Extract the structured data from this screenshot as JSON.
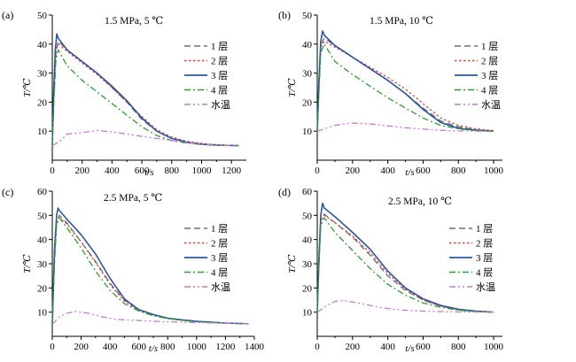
{
  "figure": {
    "x_unit_label": "t/s",
    "y_unit_label": "T/℃"
  },
  "legend_labels": [
    "1 层",
    "2 层",
    "3 层",
    "4 层",
    "水温"
  ],
  "series_styles": [
    {
      "color": "#707070",
      "dash": "7,4"
    },
    {
      "color": "#e0433a",
      "dash": "2.5,2.5"
    },
    {
      "color": "#2b55a8",
      "dash": ""
    },
    {
      "color": "#2ca02c",
      "dash": "7,3,2,3"
    },
    {
      "color": "#c77ad1",
      "dash": "7,3,2,3,2,3"
    }
  ],
  "chart_data": [
    {
      "type": "line",
      "panel_label": "(a)",
      "condition": "1.5 MPa, 5 ℃",
      "xlabel": "t/s",
      "ylabel": "T/℃",
      "xlim": [
        0,
        1300
      ],
      "ylim": [
        0,
        50
      ],
      "xticks": [
        0,
        200,
        400,
        600,
        800,
        1000,
        1200
      ],
      "yticks": [
        10,
        20,
        30,
        40,
        50
      ],
      "series": [
        {
          "name": "1 层",
          "x": [
            0,
            10,
            25,
            40,
            100,
            200,
            300,
            400,
            500,
            600,
            700,
            800,
            900,
            1000,
            1100,
            1250
          ],
          "y": [
            5,
            20,
            37,
            41,
            38,
            34,
            30,
            25,
            20,
            14,
            10,
            7.5,
            6.3,
            5.6,
            5.2,
            5
          ]
        },
        {
          "name": "2 层",
          "x": [
            0,
            10,
            25,
            40,
            100,
            200,
            300,
            400,
            500,
            600,
            700,
            800,
            900,
            1000,
            1100,
            1250
          ],
          "y": [
            5,
            22,
            38,
            40,
            37.5,
            33.5,
            29.5,
            25,
            20,
            15,
            10.5,
            8,
            6.5,
            5.8,
            5.3,
            5
          ]
        },
        {
          "name": "3 层",
          "x": [
            0,
            10,
            20,
            30,
            40,
            100,
            200,
            300,
            400,
            500,
            600,
            700,
            800,
            900,
            1000,
            1100,
            1250
          ],
          "y": [
            5,
            25,
            38,
            43.5,
            42,
            38,
            34,
            30,
            25.5,
            20.5,
            14.5,
            10,
            7.5,
            6.2,
            5.5,
            5.2,
            5
          ]
        },
        {
          "name": "4 层",
          "x": [
            0,
            10,
            25,
            40,
            100,
            200,
            300,
            400,
            500,
            600,
            700,
            800,
            900,
            1000,
            1100,
            1250
          ],
          "y": [
            5,
            20,
            35,
            38,
            32.5,
            27.5,
            23.5,
            19.5,
            15.5,
            11.5,
            8.5,
            6.8,
            5.9,
            5.4,
            5.1,
            5
          ]
        },
        {
          "name": "水温",
          "x": [
            0,
            50,
            100,
            200,
            300,
            400,
            500,
            600,
            700,
            800,
            900,
            1000,
            1100,
            1250
          ],
          "y": [
            5,
            6.5,
            9,
            9.5,
            10.2,
            9.8,
            9,
            8.2,
            7.5,
            6.8,
            6.1,
            5.6,
            5.2,
            5
          ]
        }
      ]
    },
    {
      "type": "line",
      "panel_label": "(b)",
      "condition": "1.5 MPa, 10 ℃",
      "xlabel": "t/s",
      "ylabel": "T/℃",
      "xlim": [
        0,
        1050
      ],
      "ylim": [
        0,
        50
      ],
      "xticks": [
        0,
        200,
        400,
        600,
        800,
        1000
      ],
      "yticks": [
        10,
        20,
        30,
        40,
        50
      ],
      "series": [
        {
          "name": "1 层",
          "x": [
            0,
            10,
            20,
            40,
            100,
            200,
            300,
            400,
            500,
            600,
            700,
            800,
            900,
            1000
          ],
          "y": [
            10,
            25,
            40,
            42,
            39.5,
            35.5,
            31.5,
            27.5,
            23,
            18,
            13.5,
            11.5,
            10.5,
            10
          ]
        },
        {
          "name": "2 层",
          "x": [
            0,
            10,
            20,
            40,
            100,
            200,
            300,
            400,
            500,
            600,
            700,
            800,
            900,
            1000
          ],
          "y": [
            10,
            26,
            39,
            41,
            39,
            35.5,
            32,
            28.5,
            24.5,
            19.5,
            14.5,
            12,
            10.8,
            10.2
          ]
        },
        {
          "name": "3 层",
          "x": [
            0,
            10,
            20,
            30,
            40,
            100,
            200,
            300,
            400,
            500,
            600,
            700,
            800,
            900,
            1000
          ],
          "y": [
            10,
            28,
            41,
            44.5,
            43,
            39.5,
            35.5,
            31.5,
            27.5,
            23,
            17.5,
            13,
            11,
            10.3,
            10
          ]
        },
        {
          "name": "4 层",
          "x": [
            0,
            10,
            20,
            40,
            100,
            200,
            300,
            400,
            500,
            600,
            700,
            800,
            900,
            1000
          ],
          "y": [
            10,
            24,
            37,
            40,
            34,
            29.5,
            25.5,
            21.5,
            18,
            14.5,
            12,
            10.8,
            10.2,
            10
          ]
        },
        {
          "name": "水温",
          "x": [
            0,
            50,
            100,
            200,
            300,
            400,
            500,
            600,
            700,
            800,
            900,
            1000
          ],
          "y": [
            10,
            11,
            12,
            12.8,
            12.5,
            11.8,
            11.2,
            10.7,
            10.3,
            10.1,
            10,
            10
          ]
        }
      ]
    },
    {
      "type": "line",
      "panel_label": "(c)",
      "condition": "2.5 MPa, 5 ℃",
      "xlabel": "t/s",
      "ylabel": "T/℃",
      "xlim": [
        0,
        1400
      ],
      "ylim": [
        0,
        60
      ],
      "xticks": [
        0,
        200,
        400,
        600,
        800,
        1000,
        1200,
        1400
      ],
      "yticks": [
        10,
        20,
        30,
        40,
        50,
        60
      ],
      "series": [
        {
          "name": "1 层",
          "x": [
            0,
            15,
            30,
            50,
            100,
            200,
            300,
            400,
            500,
            600,
            700,
            800,
            900,
            1000,
            1200,
            1360
          ],
          "y": [
            5,
            30,
            48,
            50,
            47,
            39,
            31,
            22,
            15,
            11,
            9,
            7.5,
            6.8,
            6.2,
            5.5,
            5.2
          ]
        },
        {
          "name": "2 层",
          "x": [
            0,
            15,
            30,
            50,
            100,
            200,
            300,
            400,
            500,
            600,
            700,
            800,
            900,
            1000,
            1200,
            1360
          ],
          "y": [
            5,
            31,
            48,
            49,
            46.5,
            39,
            30.5,
            21.5,
            14.5,
            10.5,
            8.8,
            7.4,
            6.7,
            6.1,
            5.5,
            5.2
          ]
        },
        {
          "name": "3 层",
          "x": [
            0,
            15,
            30,
            40,
            50,
            100,
            200,
            300,
            400,
            500,
            600,
            700,
            800,
            900,
            1000,
            1200,
            1360
          ],
          "y": [
            5,
            35,
            50,
            53,
            52,
            48.5,
            42,
            34,
            24,
            15.5,
            11,
            9,
            7.5,
            6.8,
            6.2,
            5.5,
            5.2
          ]
        },
        {
          "name": "4 层",
          "x": [
            0,
            15,
            30,
            50,
            100,
            200,
            300,
            400,
            500,
            600,
            700,
            800,
            900,
            1000,
            1200,
            1360
          ],
          "y": [
            5,
            30,
            46,
            49,
            45,
            36.5,
            27,
            19,
            13.5,
            10.5,
            8.5,
            7.3,
            6.6,
            6,
            5.5,
            5.2
          ]
        },
        {
          "name": "水温",
          "x": [
            0,
            50,
            100,
            160,
            250,
            350,
            450,
            600,
            800,
            1000,
            1200,
            1360
          ],
          "y": [
            5,
            8,
            9.5,
            10.3,
            9.5,
            8,
            7,
            6.5,
            6,
            5.7,
            5.4,
            5.2
          ]
        }
      ]
    },
    {
      "type": "line",
      "panel_label": "(d)",
      "condition": "2.5 MPa, 10 ℃",
      "xlabel": "t/s",
      "ylabel": "T/℃",
      "xlim": [
        0,
        1050
      ],
      "ylim": [
        0,
        60
      ],
      "xticks": [
        0,
        200,
        400,
        600,
        800,
        1000
      ],
      "yticks": [
        10,
        20,
        30,
        40,
        50,
        60
      ],
      "series": [
        {
          "name": "1 层",
          "x": [
            0,
            10,
            20,
            40,
            100,
            200,
            300,
            400,
            500,
            600,
            700,
            800,
            900,
            1000
          ],
          "y": [
            10,
            30,
            48,
            50.5,
            47,
            41,
            33.5,
            25,
            19,
            15,
            12.5,
            11,
            10.3,
            10
          ]
        },
        {
          "name": "2 层",
          "x": [
            0,
            10,
            20,
            40,
            100,
            200,
            300,
            400,
            500,
            600,
            700,
            800,
            900,
            1000
          ],
          "y": [
            10,
            31,
            48,
            50,
            47,
            41.5,
            34.5,
            26,
            19.5,
            15,
            12.5,
            11,
            10.3,
            10
          ]
        },
        {
          "name": "3 层",
          "x": [
            0,
            10,
            20,
            30,
            40,
            100,
            200,
            300,
            400,
            500,
            600,
            700,
            800,
            900,
            1000
          ],
          "y": [
            10,
            33,
            50,
            55,
            53,
            49.5,
            43,
            36,
            27,
            20,
            15.5,
            12.8,
            11.2,
            10.4,
            10
          ]
        },
        {
          "name": "4 层",
          "x": [
            0,
            10,
            20,
            40,
            100,
            200,
            300,
            400,
            500,
            600,
            700,
            800,
            900,
            1000
          ],
          "y": [
            10,
            30,
            46,
            49,
            43,
            35.5,
            28,
            21.5,
            17,
            13.8,
            12,
            10.8,
            10.2,
            10
          ]
        },
        {
          "name": "水温",
          "x": [
            0,
            50,
            100,
            150,
            250,
            350,
            450,
            600,
            800,
            1000
          ],
          "y": [
            10,
            12.5,
            14.5,
            14.8,
            13.5,
            12,
            11,
            10.4,
            10.1,
            10
          ]
        }
      ]
    }
  ]
}
